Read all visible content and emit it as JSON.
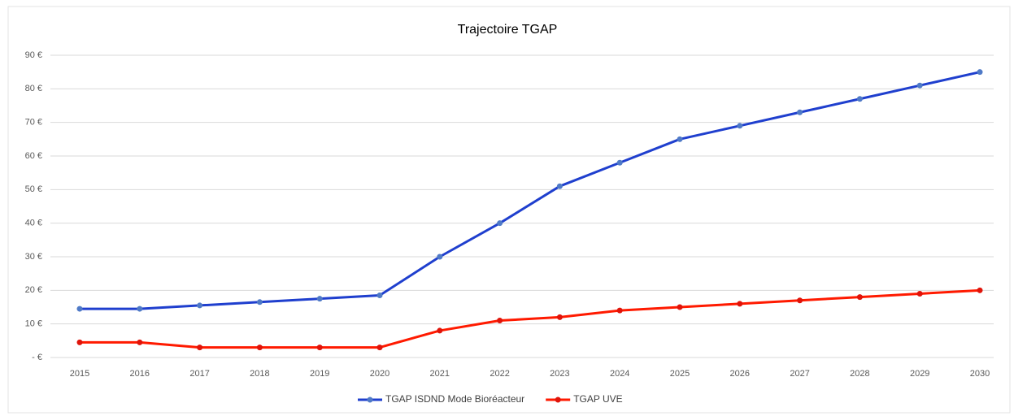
{
  "chart_data": {
    "type": "line",
    "title": "Trajectoire TGAP",
    "categories": [
      "2015",
      "2016",
      "2017",
      "2018",
      "2019",
      "2020",
      "2021",
      "2022",
      "2023",
      "2024",
      "2025",
      "2026",
      "2027",
      "2028",
      "2029",
      "2030"
    ],
    "series": [
      {
        "name": "TGAP ISDND Mode Bioréacteur",
        "color": "#1f3fce",
        "marker_color": "#4f7ac7",
        "values": [
          14.5,
          14.5,
          15.5,
          16.5,
          17.5,
          18.5,
          30,
          40,
          51,
          58,
          65,
          69,
          73,
          77,
          81,
          85
        ]
      },
      {
        "name": "TGAP UVE",
        "color": "#ff1a00",
        "marker_color": "#e0140a",
        "values": [
          4.5,
          4.5,
          3,
          3,
          3,
          3,
          8,
          11,
          12,
          14,
          15,
          16,
          17,
          18,
          19,
          20
        ]
      }
    ],
    "ylim": [
      0,
      90
    ],
    "yticks": [
      {
        "value": 0,
        "label": "-   €"
      },
      {
        "value": 10,
        "label": "10 €"
      },
      {
        "value": 20,
        "label": "20 €"
      },
      {
        "value": 30,
        "label": "30 €"
      },
      {
        "value": 40,
        "label": "40 €"
      },
      {
        "value": 50,
        "label": "50 €"
      },
      {
        "value": 60,
        "label": "60 €"
      },
      {
        "value": 70,
        "label": "70 €"
      },
      {
        "value": 80,
        "label": "80 €"
      },
      {
        "value": 90,
        "label": "90 €"
      }
    ],
    "grid": true,
    "legend": "bottom"
  }
}
